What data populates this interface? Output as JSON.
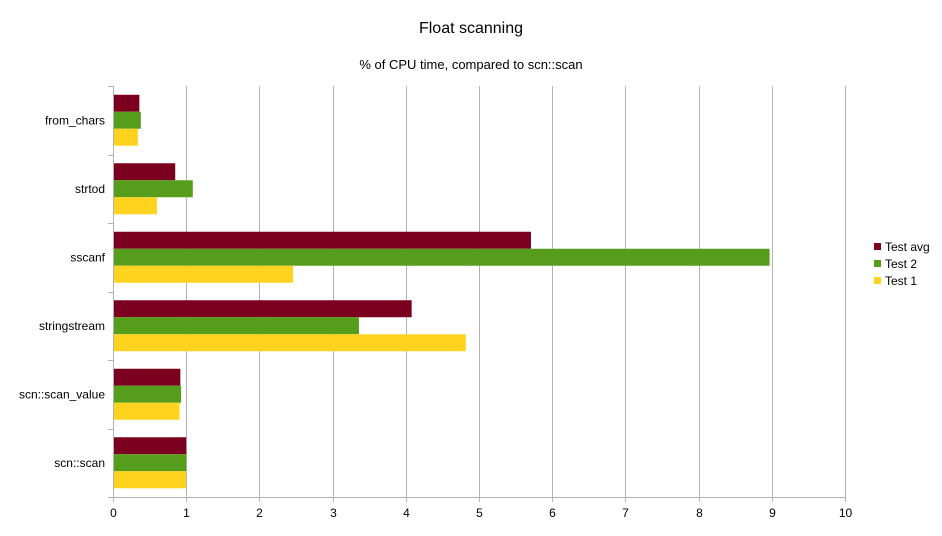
{
  "chart_data": {
    "type": "bar",
    "orientation": "horizontal",
    "title": "Float scanning",
    "subtitle": "% of CPU time, compared to scn::scan",
    "xlabel": "",
    "ylabel": "",
    "categories": [
      "from_chars",
      "strtod",
      "sscanf",
      "stringstream",
      "scn::scan_value",
      "scn::scan"
    ],
    "series": [
      {
        "name": "Test avg",
        "color": "#7b0020",
        "values": [
          0.36,
          0.85,
          5.71,
          4.08,
          0.92,
          1.0
        ]
      },
      {
        "name": "Test 2",
        "color": "#579d1c",
        "values": [
          0.38,
          1.09,
          8.97,
          3.36,
          0.93,
          1.0
        ]
      },
      {
        "name": "Test 1",
        "color": "#ffd320",
        "values": [
          0.34,
          0.6,
          2.46,
          4.82,
          0.91,
          1.0
        ]
      }
    ],
    "xlim": [
      0,
      10
    ],
    "xticks": [
      "0",
      "1",
      "2",
      "3",
      "4",
      "5",
      "6",
      "7",
      "8",
      "9",
      "10"
    ],
    "grid": true,
    "legend_position": "right"
  }
}
